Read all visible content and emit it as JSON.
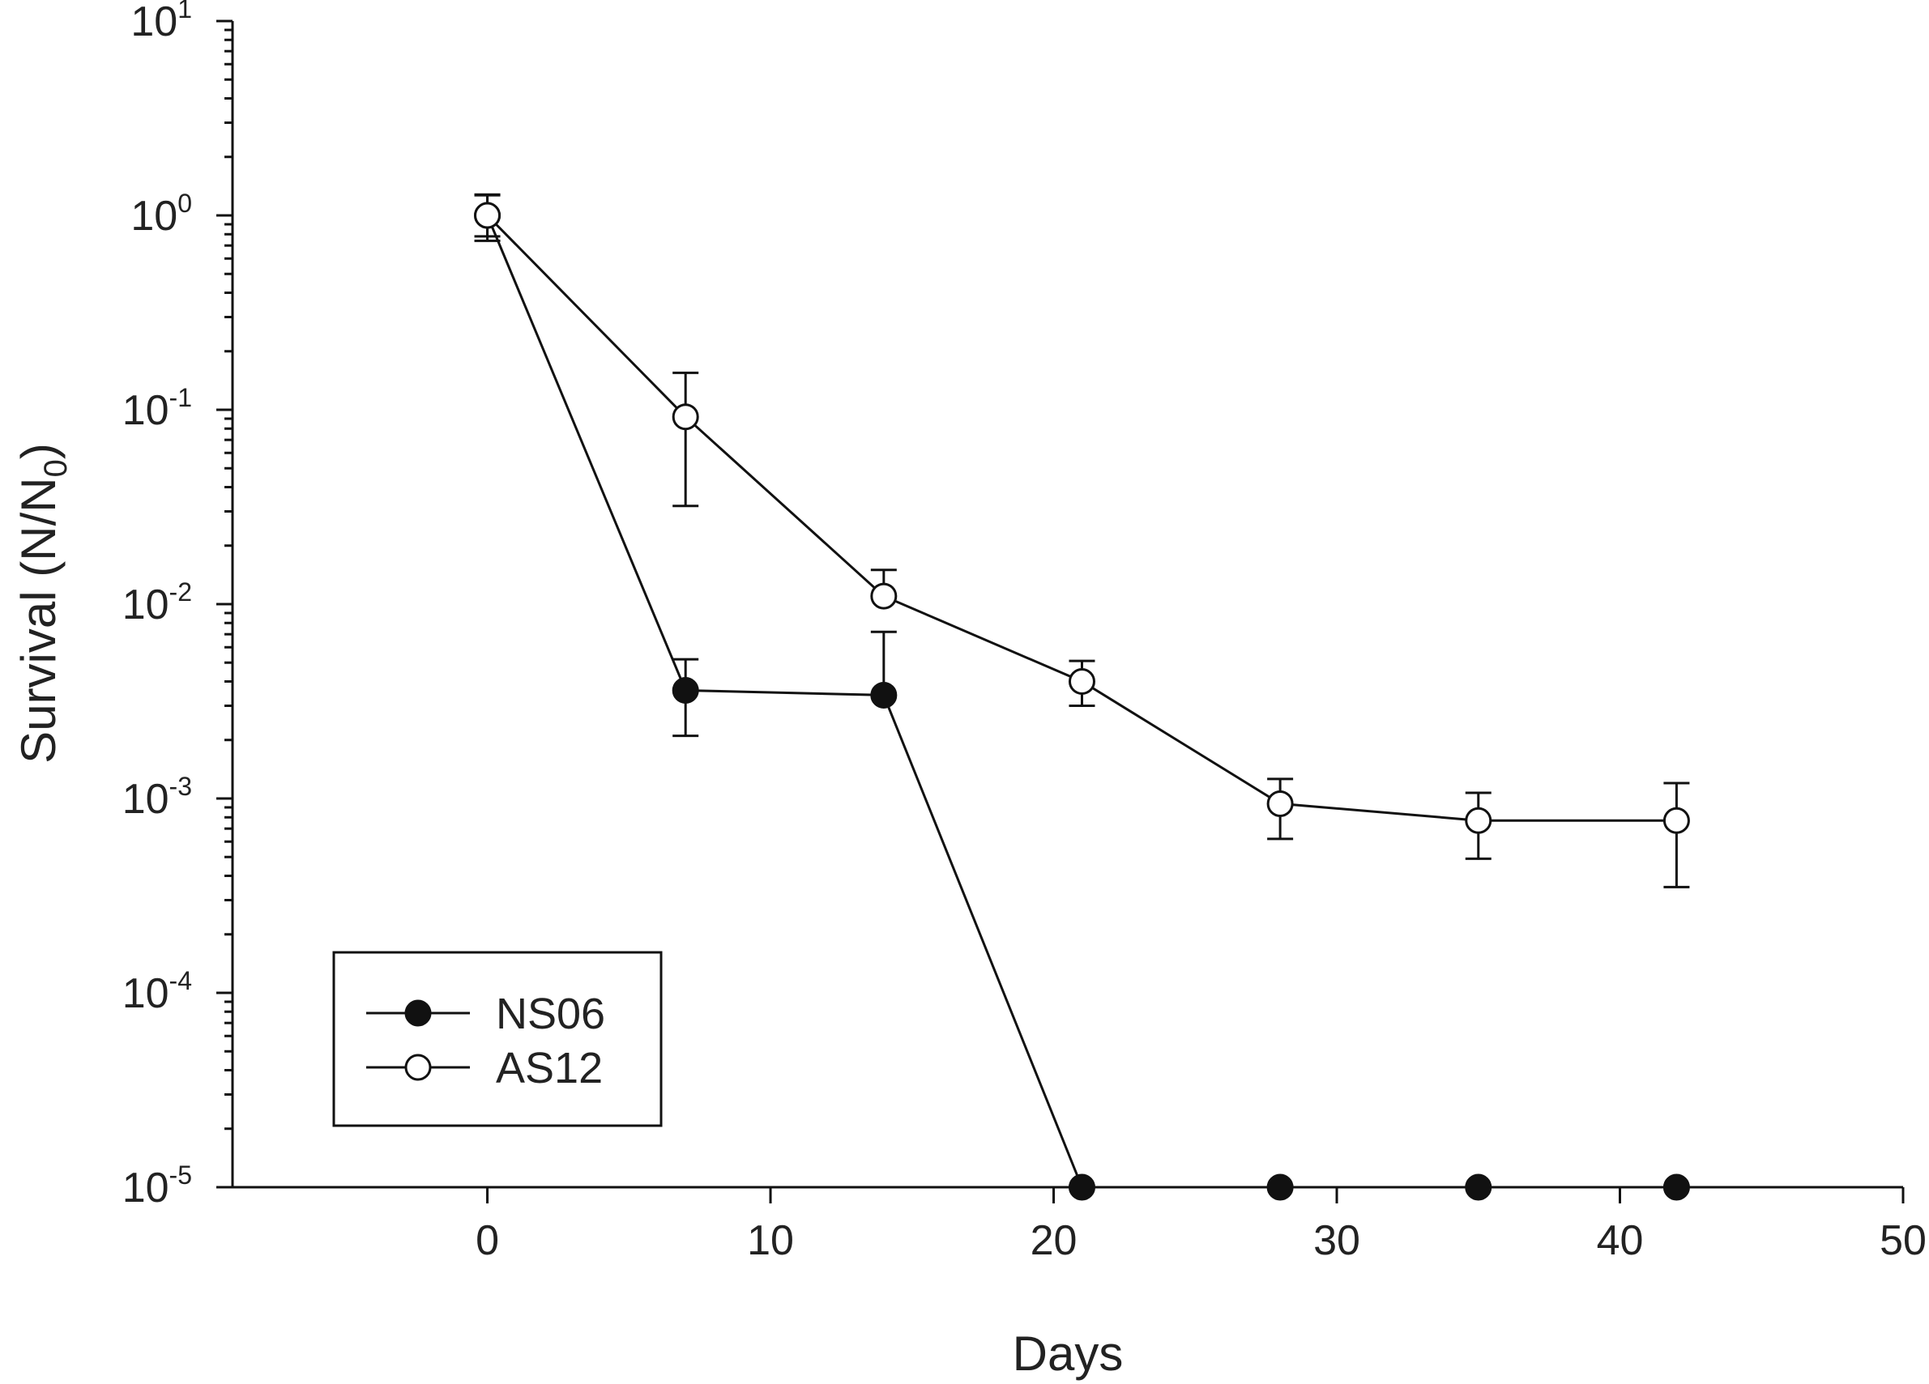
{
  "chart_data": {
    "type": "scatter",
    "xlabel": "Days",
    "ylabel": {
      "main": "Survival (N/N",
      "subscript": "0",
      "close": ")"
    },
    "x_axis": {
      "range": [
        -9,
        50
      ],
      "ticks": [
        0,
        10,
        20,
        30,
        40,
        50
      ],
      "tick_labels": [
        "0",
        "10",
        "20",
        "30",
        "40",
        "50"
      ]
    },
    "y_axis": {
      "scale": "log",
      "range": [
        1e-05,
        10
      ],
      "ticks": [
        1e-05,
        0.0001,
        0.001,
        0.01,
        0.1,
        1,
        10
      ],
      "tick_labels": [
        {
          "base": "10",
          "exp": "-5"
        },
        {
          "base": "10",
          "exp": "-4"
        },
        {
          "base": "10",
          "exp": "-3"
        },
        {
          "base": "10",
          "exp": "-2"
        },
        {
          "base": "10",
          "exp": "-1"
        },
        {
          "base": "10",
          "exp": "0"
        },
        {
          "base": "10",
          "exp": "1"
        }
      ]
    },
    "grid": false,
    "legend": {
      "position": "bottom-left",
      "entries": [
        "NS06",
        "AS12"
      ]
    },
    "series": [
      {
        "name": "NS06",
        "marker": "filled-circle",
        "color": "#111111",
        "points": [
          {
            "x": 0,
            "y": 1.0,
            "err_low": 0.78,
            "err_high": 1.27
          },
          {
            "x": 7,
            "y": 0.0036,
            "err_low": 0.0021,
            "err_high": 0.0052
          },
          {
            "x": 14,
            "y": 0.0034,
            "err_low": null,
            "err_high": 0.0072
          },
          {
            "x": 21,
            "y": 1e-05,
            "err_low": null,
            "err_high": null
          },
          {
            "x": 28,
            "y": 1e-05,
            "err_low": null,
            "err_high": null
          },
          {
            "x": 35,
            "y": 1e-05,
            "err_low": null,
            "err_high": null
          },
          {
            "x": 42,
            "y": 1e-05,
            "err_low": null,
            "err_high": null
          }
        ]
      },
      {
        "name": "AS12",
        "marker": "open-circle",
        "color": "#111111",
        "points": [
          {
            "x": 0,
            "y": 1.0,
            "err_low": 0.74,
            "err_high": 1.28
          },
          {
            "x": 7,
            "y": 0.092,
            "err_low": 0.032,
            "err_high": 0.155
          },
          {
            "x": 14,
            "y": 0.011,
            "err_low": null,
            "err_high": 0.015
          },
          {
            "x": 21,
            "y": 0.004,
            "err_low": 0.003,
            "err_high": 0.0051
          },
          {
            "x": 28,
            "y": 0.00094,
            "err_low": 0.00062,
            "err_high": 0.00126
          },
          {
            "x": 35,
            "y": 0.00077,
            "err_low": 0.00049,
            "err_high": 0.00107
          },
          {
            "x": 42,
            "y": 0.00077,
            "err_low": 0.00035,
            "err_high": 0.0012
          }
        ]
      }
    ]
  }
}
